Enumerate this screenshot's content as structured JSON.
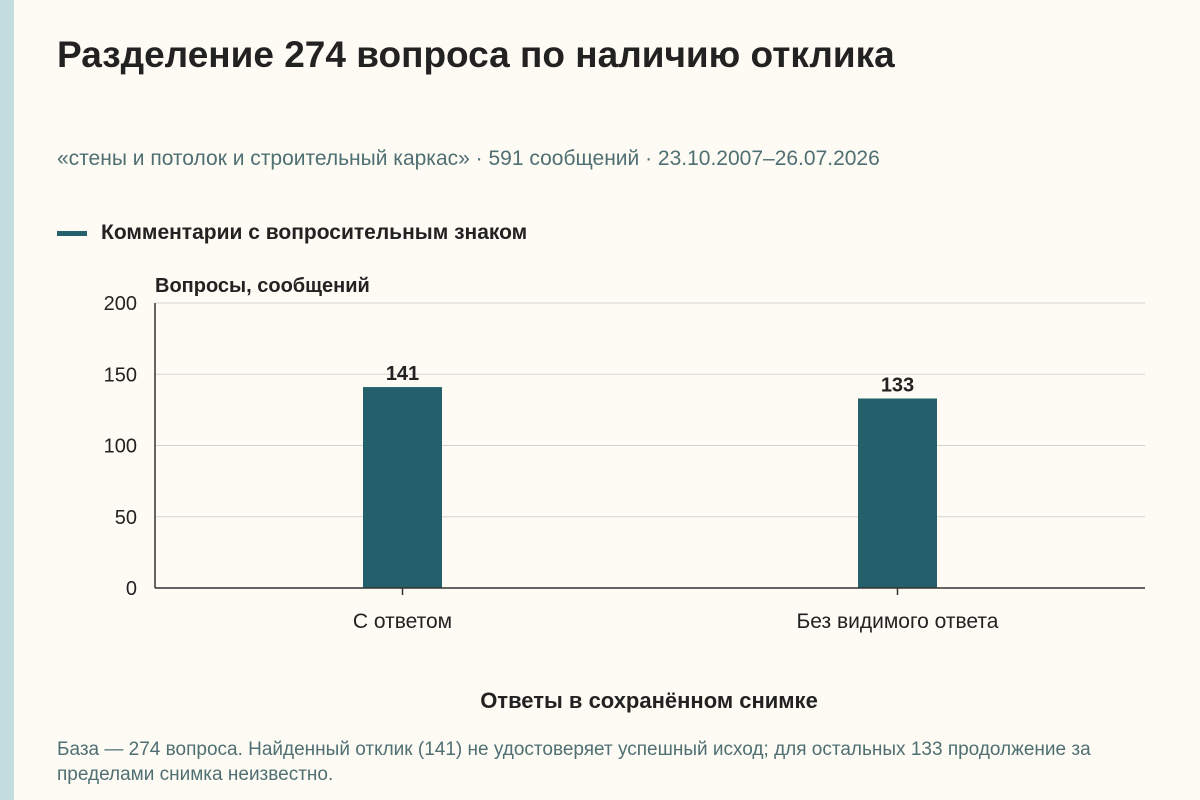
{
  "title": "Разделение 274 вопроса по наличию отклика",
  "subtitle": "«стены и потолок и строительный каркас» · 591 сообщений · 23.10.2007–26.07.2026",
  "footnote": "База — 274 вопроса. Найденный отклик (141) не удостоверяет успешный исход; для остальных 133 продолжение за пределами снимка неизвестно.",
  "colors": {
    "background": "#fdfbf3",
    "accent_stripe": "#c3dde0",
    "bar": "#24606b",
    "title_text": "#222222",
    "muted_text": "#4f6f73",
    "grid": "#d3d3d3",
    "axis": "#333333"
  },
  "chart_data": {
    "type": "bar",
    "categories": [
      "С ответом",
      "Без видимого ответа"
    ],
    "series": [
      {
        "name": "Комментарии с вопросительным знаком",
        "values": [
          141,
          133
        ]
      }
    ],
    "data_labels": [
      "141",
      "133"
    ],
    "xlabel": "Ответы в сохранённом снимке",
    "ylabel": "Вопросы, сообщений",
    "ylim": [
      0,
      200
    ],
    "yticks": [
      0,
      50,
      100,
      150,
      200
    ],
    "grid": true,
    "legend_position": "top-left"
  }
}
